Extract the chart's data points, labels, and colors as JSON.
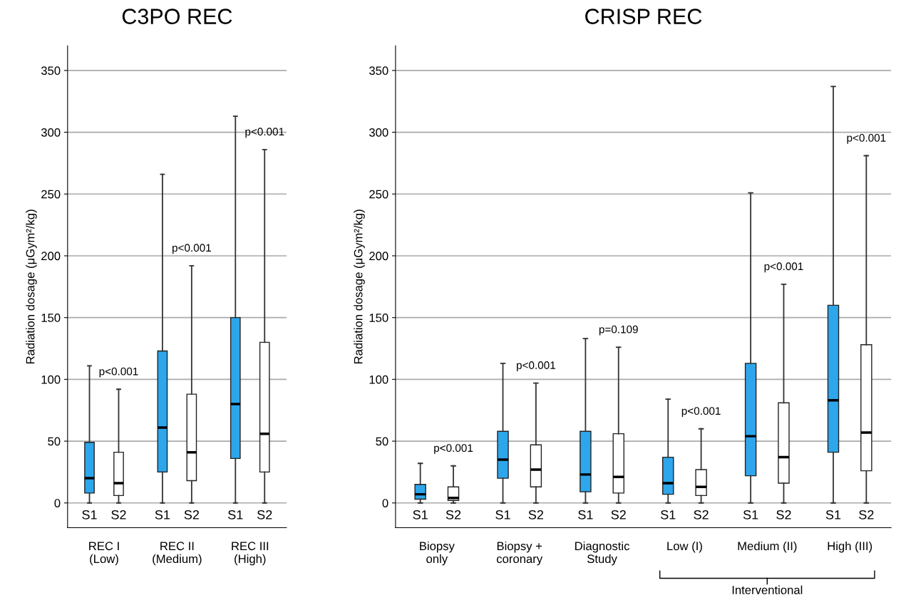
{
  "chart_data": [
    {
      "type": "box",
      "title": "C3PO REC",
      "ylabel": "Radiation dosage (μGym²/kg)",
      "categories": [
        "REC I\n(Low)",
        "REC II\n(Medium)",
        "REC III\n(High)"
      ],
      "ylim": [
        -20,
        370
      ],
      "yticks": [
        0,
        50,
        100,
        150,
        200,
        250,
        300,
        350
      ],
      "grid": "y",
      "series": [
        {
          "name": "S1",
          "color": "#2ea6ec",
          "boxes": [
            {
              "low": 0,
              "q1": 8,
              "median": 20,
              "q3": 49,
              "high": 111
            },
            {
              "low": 0,
              "q1": 25,
              "median": 61,
              "q3": 123,
              "high": 266
            },
            {
              "low": 0,
              "q1": 36,
              "median": 80,
              "q3": 150,
              "high": 313
            }
          ]
        },
        {
          "name": "S2",
          "color": "#ffffff",
          "boxes": [
            {
              "low": 0,
              "q1": 6,
              "median": 16,
              "q3": 41,
              "high": 92
            },
            {
              "low": 0,
              "q1": 18,
              "median": 41,
              "q3": 88,
              "high": 192
            },
            {
              "low": 0,
              "q1": 25,
              "median": 56,
              "q3": 130,
              "high": 286
            }
          ]
        }
      ],
      "annotations": [
        "p<0.001",
        "p<0.001",
        "p<0.001"
      ]
    },
    {
      "type": "box",
      "title": "CRISP REC",
      "ylabel": "Radiation dosage (μGym²/kg)",
      "categories": [
        "Biopsy\nonly",
        "Biopsy +\ncoronary",
        "Diagnostic\nStudy",
        "Low (I)",
        "Medium (II)",
        "High (III)"
      ],
      "ylim": [
        -20,
        370
      ],
      "yticks": [
        0,
        50,
        100,
        150,
        200,
        250,
        300,
        350
      ],
      "grid": "y",
      "series": [
        {
          "name": "S1",
          "color": "#2ea6ec",
          "boxes": [
            {
              "low": 0,
              "q1": 3,
              "median": 7,
              "q3": 15,
              "high": 32
            },
            {
              "low": 0,
              "q1": 20,
              "median": 35,
              "q3": 58,
              "high": 113
            },
            {
              "low": 0,
              "q1": 9,
              "median": 23,
              "q3": 58,
              "high": 133
            },
            {
              "low": 0,
              "q1": 7,
              "median": 16,
              "q3": 37,
              "high": 84
            },
            {
              "low": 0,
              "q1": 22,
              "median": 54,
              "q3": 113,
              "high": 251
            },
            {
              "low": 0,
              "q1": 41,
              "median": 83,
              "q3": 160,
              "high": 337
            }
          ]
        },
        {
          "name": "S2",
          "color": "#ffffff",
          "boxes": [
            {
              "low": 0,
              "q1": 2,
              "median": 4,
              "q3": 13,
              "high": 30
            },
            {
              "low": 0,
              "q1": 13,
              "median": 27,
              "q3": 47,
              "high": 97
            },
            {
              "low": 0,
              "q1": 8,
              "median": 21,
              "q3": 56,
              "high": 126
            },
            {
              "low": 0,
              "q1": 6,
              "median": 13,
              "q3": 27,
              "high": 60
            },
            {
              "low": 0,
              "q1": 16,
              "median": 37,
              "q3": 81,
              "high": 177
            },
            {
              "low": 0,
              "q1": 26,
              "median": 57,
              "q3": 128,
              "high": 281
            }
          ]
        }
      ],
      "annotations": [
        "p<0.001",
        "p<0.001",
        "p=0.109",
        "p<0.001",
        "p<0.001",
        "p<0.001",
        "Interventional"
      ]
    }
  ]
}
